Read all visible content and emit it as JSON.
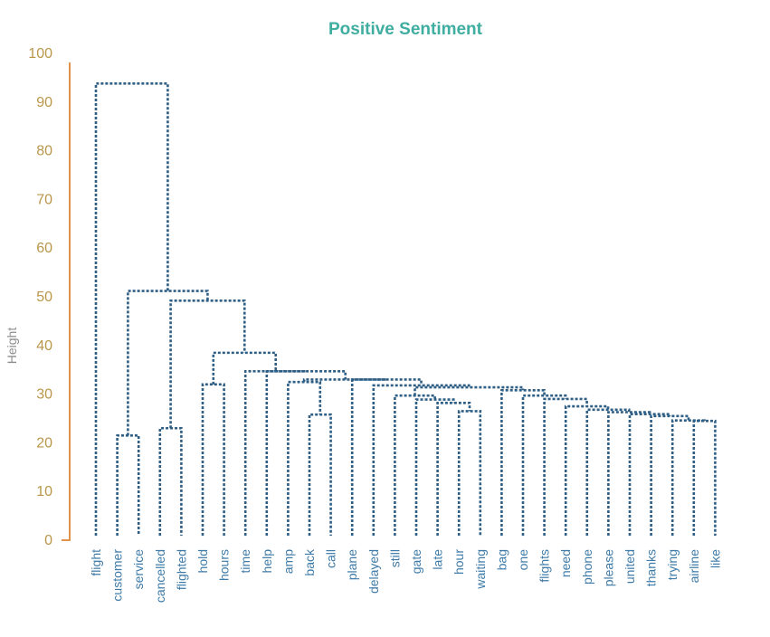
{
  "chart_data": {
    "type": "dendrogram",
    "title": "Positive Sentiment",
    "ylabel": "Height",
    "ylim": [
      0,
      100
    ],
    "yticks": [
      0,
      10,
      20,
      30,
      40,
      50,
      60,
      70,
      80,
      90,
      100
    ],
    "leaves": [
      "flight",
      "customer",
      "service",
      "cancelled",
      "flighted",
      "hold",
      "hours",
      "time",
      "help",
      "amp",
      "back",
      "call",
      "plane",
      "delayed",
      "still",
      "gate",
      "late",
      "hour",
      "waiting",
      "bag",
      "one",
      "flights",
      "need",
      "phone",
      "please",
      "united",
      "thanks",
      "trying",
      "airline",
      "like"
    ],
    "merges": [
      {
        "id": "m1",
        "left": "L1",
        "right": "L2",
        "height": 21.5
      },
      {
        "id": "m2",
        "left": "L3",
        "right": "L4",
        "height": 23.0
      },
      {
        "id": "m3",
        "left": "L5",
        "right": "L6",
        "height": 32.0
      },
      {
        "id": "m4",
        "left": "L10",
        "right": "L11",
        "height": 25.8
      },
      {
        "id": "m5",
        "left": "L28",
        "right": "L29",
        "height": 24.5
      },
      {
        "id": "m6",
        "left": "L27",
        "right": "m5",
        "height": 24.6
      },
      {
        "id": "m7",
        "left": "L26",
        "right": "m6",
        "height": 25.5
      },
      {
        "id": "m8",
        "left": "L25",
        "right": "m7",
        "height": 25.9
      },
      {
        "id": "m9",
        "left": "L24",
        "right": "m8",
        "height": 26.3
      },
      {
        "id": "m10",
        "left": "L23",
        "right": "m9",
        "height": 26.8
      },
      {
        "id": "m11",
        "left": "L22",
        "right": "m10",
        "height": 27.5
      },
      {
        "id": "m12",
        "left": "L21",
        "right": "m11",
        "height": 29.0
      },
      {
        "id": "m13",
        "left": "L17",
        "right": "L18",
        "height": 26.5
      },
      {
        "id": "m14",
        "left": "L16",
        "right": "m13",
        "height": 28.2
      },
      {
        "id": "m15",
        "left": "L15",
        "right": "m14",
        "height": 28.9
      },
      {
        "id": "m16",
        "left": "L14",
        "right": "m15",
        "height": 29.7
      },
      {
        "id": "m17",
        "left": "L20",
        "right": "m12",
        "height": 29.7
      },
      {
        "id": "m18",
        "left": "L19",
        "right": "m17",
        "height": 30.8
      },
      {
        "id": "m19",
        "left": "m16",
        "right": "m18",
        "height": 31.4
      },
      {
        "id": "m20",
        "left": "L13",
        "right": "m19",
        "height": 31.8
      },
      {
        "id": "m21",
        "left": "L12",
        "right": "m20",
        "height": 33.0
      },
      {
        "id": "m22",
        "left": "L9",
        "right": "m4",
        "height": 32.5
      },
      {
        "id": "m23",
        "left": "m22",
        "right": "m21",
        "height": 33.0
      },
      {
        "id": "m24",
        "left": "L8",
        "right": "m23",
        "height": 34.7
      },
      {
        "id": "m25",
        "left": "L7",
        "right": "m24",
        "height": 34.7
      },
      {
        "id": "m26",
        "left": "m3",
        "right": "m25",
        "height": 38.5
      },
      {
        "id": "m27",
        "left": "m2",
        "right": "m26",
        "height": 49.2
      },
      {
        "id": "m28",
        "left": "m1",
        "right": "m27",
        "height": 51.2
      },
      {
        "id": "m29",
        "left": "L0",
        "right": "m28",
        "height": 93.8
      }
    ]
  },
  "colors": {
    "title": "#3fada0",
    "axis": "#e1924b",
    "tick_labels": "#b9964a",
    "ylabel": "#8c8c8c",
    "leaf_labels": "#3f7ba8",
    "branches": "#2f5f85"
  }
}
